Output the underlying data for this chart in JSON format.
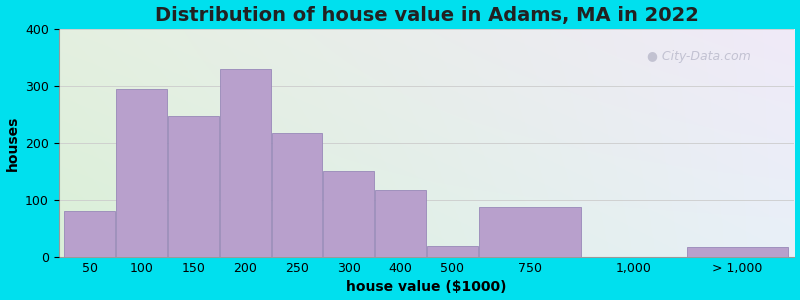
{
  "title": "Distribution of house value in Adams, MA in 2022",
  "xlabel": "house value ($1000)",
  "ylabel": "houses",
  "bar_labels": [
    "50",
    "100",
    "150",
    "200",
    "250",
    "300",
    "400",
    "500",
    "750",
    "1,000",
    "> 1,000"
  ],
  "bar_values": [
    80,
    295,
    248,
    330,
    218,
    150,
    117,
    20,
    88,
    0,
    17
  ],
  "bar_left_edges": [
    0,
    1,
    2,
    3,
    4,
    5,
    6,
    7,
    8,
    10,
    12
  ],
  "bar_widths": [
    1,
    1,
    1,
    1,
    1,
    1,
    1,
    1,
    2,
    2,
    2
  ],
  "tick_positions": [
    0.5,
    1.5,
    2.5,
    3.5,
    4.5,
    5.5,
    6.5,
    7.5,
    9.0,
    11.0,
    13.0
  ],
  "bar_color": "#b8a0cc",
  "bar_edgecolor": "#9888b8",
  "ylim": [
    0,
    400
  ],
  "yticks": [
    0,
    100,
    200,
    300,
    400
  ],
  "xlim": [
    -0.1,
    14.1
  ],
  "background_outer": "#00e0ee",
  "bg_color_top_left": "#daf0d8",
  "bg_color_top_right": "#e8f0f8",
  "bg_color_bottom_right": "#f0eaf8",
  "grid_color": "#cccccc",
  "title_fontsize": 14,
  "axis_label_fontsize": 10,
  "tick_label_fontsize": 9,
  "watermark_text": "City-Data.com",
  "watermark_color": "#bbbbcc",
  "watermark_fontsize": 9
}
